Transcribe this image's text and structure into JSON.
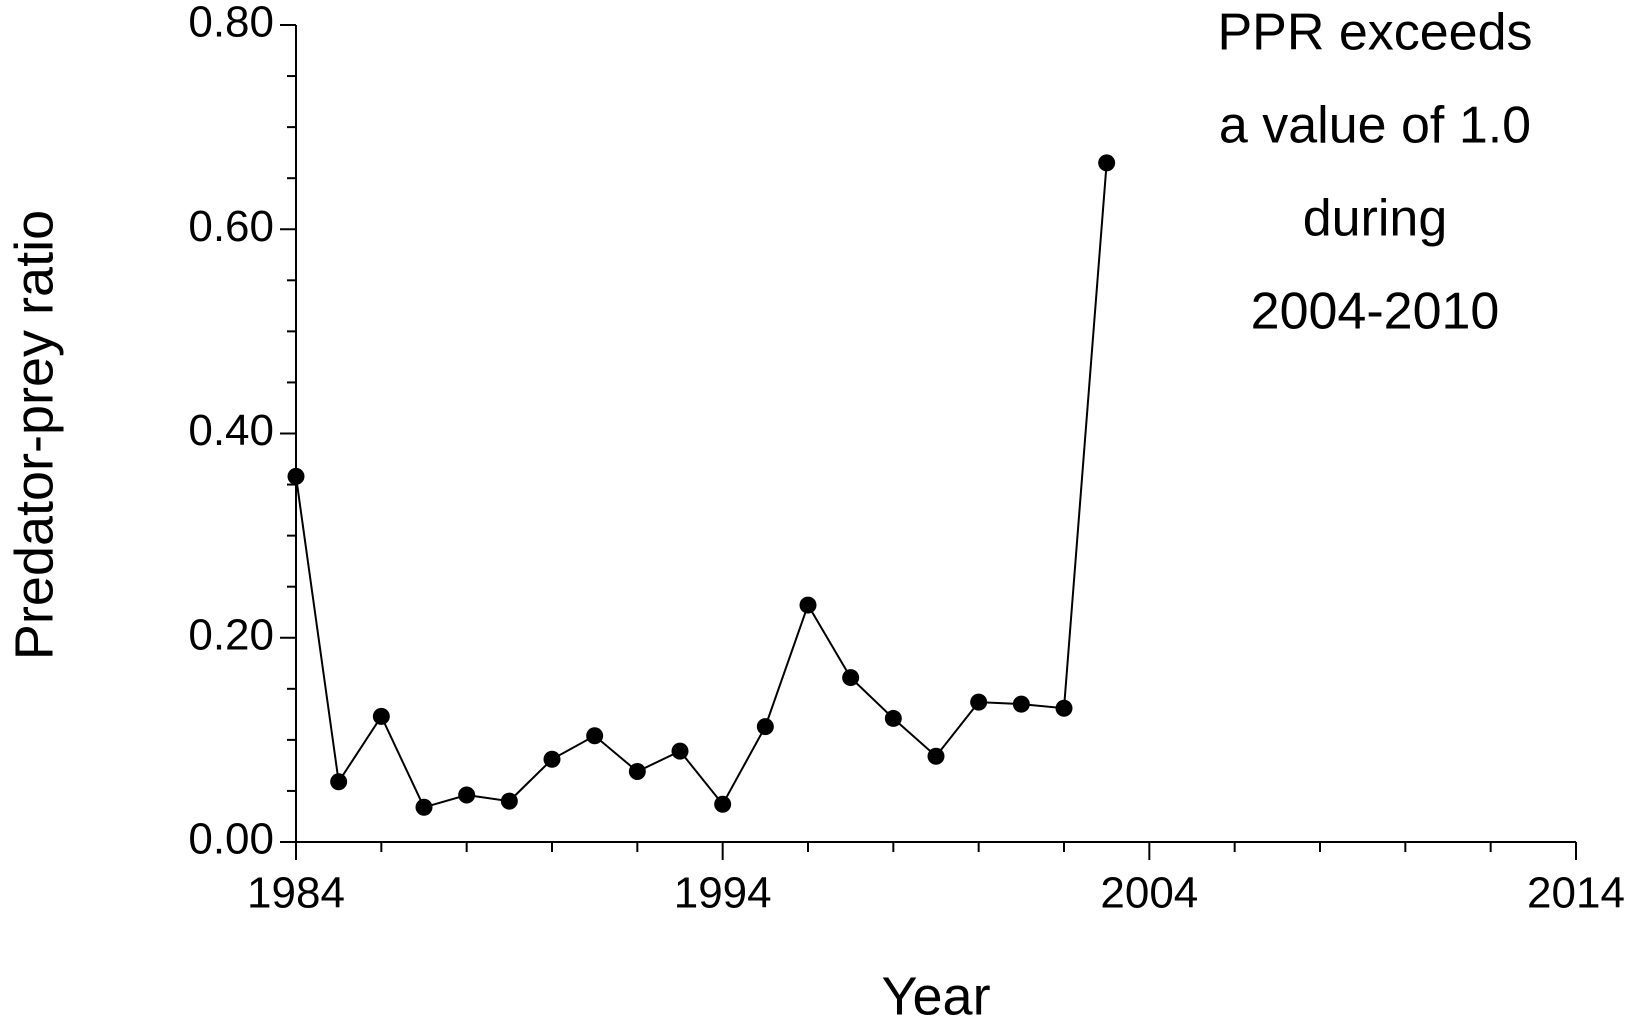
{
  "chart_data": {
    "type": "line",
    "xlabel": "Year",
    "ylabel": "Predator-prey ratio",
    "annotation": [
      "PPR exceeds",
      "a value of 1.0",
      "during",
      "2004-2010"
    ],
    "x": [
      1984,
      1985,
      1986,
      1987,
      1988,
      1989,
      1990,
      1991,
      1992,
      1993,
      1994,
      1995,
      1996,
      1997,
      1998,
      1999,
      2000,
      2001,
      2002,
      2003
    ],
    "series": [
      {
        "color": "#000000",
        "values": [
          0.358,
          0.059,
          0.123,
          0.034,
          0.046,
          0.04,
          0.081,
          0.104,
          0.069,
          0.089,
          0.037,
          0.113,
          0.232,
          0.161,
          0.121,
          0.084,
          0.137,
          0.135,
          0.131,
          0.665
        ]
      }
    ],
    "xlim": [
      1984,
      2014
    ],
    "xticks": [
      1984,
      1994,
      2004,
      2014
    ],
    "x_minor_ticks": [
      1986,
      1988,
      1990,
      1992,
      1996,
      1998,
      2000,
      2002,
      2006,
      2008,
      2010,
      2012
    ],
    "ylim": [
      0,
      0.8
    ],
    "yticks": [
      {
        "value": 0,
        "label": "0.00"
      },
      {
        "value": 0.2,
        "label": "0.20"
      },
      {
        "value": 0.4,
        "label": "0.40"
      },
      {
        "value": 0.6,
        "label": "0.60"
      },
      {
        "value": 0.8,
        "label": "0.80"
      }
    ],
    "y_minor_ticks": [
      0.05,
      0.1,
      0.15,
      0.25,
      0.3,
      0.35,
      0.45,
      0.5,
      0.55,
      0.65,
      0.7,
      0.75
    ],
    "grid": false
  }
}
